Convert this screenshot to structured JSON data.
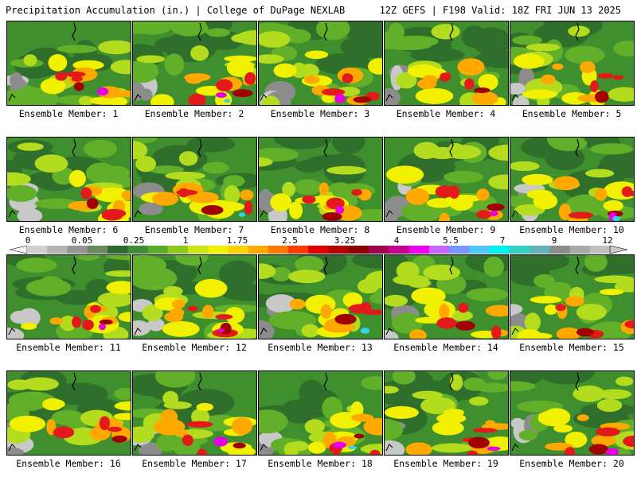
{
  "header": {
    "title_left": "Precipitation Accumulation (in.) | College of DuPage NEXLAB",
    "title_right": "12Z GEFS | F198 Valid: 18Z FRI JUN 13 2025"
  },
  "colorbar": {
    "tick_labels": [
      "0",
      "0.05",
      "0.25",
      "1",
      "1.75",
      "2.5",
      "3.25",
      "4",
      "5.5",
      "7",
      "9",
      "12"
    ],
    "colors": [
      "#d0d0d0",
      "#b4b4b4",
      "#969696",
      "#6a8a5a",
      "#2e6a30",
      "#3c8c32",
      "#5aaa2a",
      "#8cc81e",
      "#c8e614",
      "#f0f000",
      "#ffd000",
      "#ffa800",
      "#ff7800",
      "#ff3c00",
      "#e00000",
      "#b40000",
      "#8c0000",
      "#a00050",
      "#c80090",
      "#f000f0",
      "#c864ff",
      "#7896ff",
      "#50c8ff",
      "#00f0f0",
      "#30d0c8",
      "#60b4b4",
      "#8c8c8c",
      "#a8a8a8",
      "#c0c0c0"
    ]
  },
  "palette": {
    "gray_light": "#c8c8c8",
    "gray": "#8c8c8c",
    "green_dark": "#2f6f2b",
    "green": "#3f8f2e",
    "green_light": "#62b02a",
    "yellow_green": "#b4dc1e",
    "yellow": "#f0f000",
    "orange": "#ffa800",
    "red": "#e21a1a",
    "dark_red": "#a00000",
    "magenta": "#e600e6",
    "cyan": "#32d2f0"
  },
  "panels": [
    {
      "label": "Ensemble Member: 1"
    },
    {
      "label": "Ensemble Member: 2"
    },
    {
      "label": "Ensemble Member: 3"
    },
    {
      "label": "Ensemble Member: 4"
    },
    {
      "label": "Ensemble Member: 5"
    },
    {
      "label": "Ensemble Member: 6"
    },
    {
      "label": "Ensemble Member: 7"
    },
    {
      "label": "Ensemble Member: 8"
    },
    {
      "label": "Ensemble Member: 9"
    },
    {
      "label": "Ensemble Member: 10"
    },
    {
      "label": "Ensemble Member: 11"
    },
    {
      "label": "Ensemble Member: 12"
    },
    {
      "label": "Ensemble Member: 13"
    },
    {
      "label": "Ensemble Member: 14"
    },
    {
      "label": "Ensemble Member: 15"
    },
    {
      "label": "Ensemble Member: 16"
    },
    {
      "label": "Ensemble Member: 17"
    },
    {
      "label": "Ensemble Member: 18"
    },
    {
      "label": "Ensemble Member: 19"
    },
    {
      "label": "Ensemble Member: 20"
    }
  ]
}
